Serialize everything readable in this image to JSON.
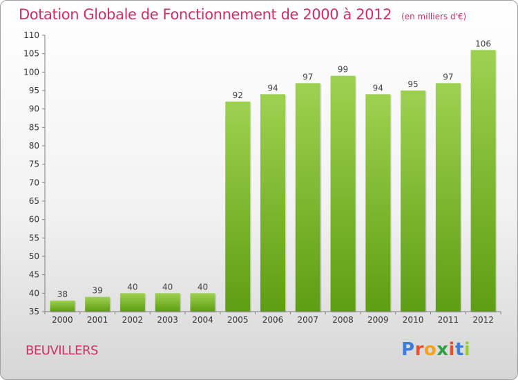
{
  "header": {
    "title": "Dotation Globale de Fonctionnement de 2000 à 2012",
    "subtitle": "(en milliers d'€)"
  },
  "footer": {
    "location": "BEUVILLERS",
    "logo_text": "Proxiti",
    "logo_colors": [
      "#3b7dd8",
      "#e8502a",
      "#f2a21b",
      "#2f9e44",
      "#e8502a",
      "#3b7dd8",
      "#9acd32"
    ]
  },
  "chart_data": {
    "type": "bar",
    "categories": [
      "2000",
      "2001",
      "2002",
      "2003",
      "2004",
      "2005",
      "2006",
      "2007",
      "2008",
      "2009",
      "2010",
      "2011",
      "2012"
    ],
    "values": [
      38,
      39,
      40,
      40,
      40,
      92,
      94,
      97,
      99,
      94,
      95,
      97,
      106
    ],
    "ylim": [
      35,
      110
    ],
    "yticks": [
      35,
      40,
      45,
      50,
      55,
      60,
      65,
      70,
      75,
      80,
      85,
      90,
      95,
      100,
      105,
      110
    ],
    "grid": false,
    "colors": {
      "bar_top": "#9ed150",
      "bar_bottom": "#5e9e12",
      "axis": "#808080"
    }
  }
}
